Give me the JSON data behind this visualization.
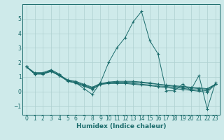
{
  "title": "",
  "xlabel": "Humidex (Indice chaleur)",
  "ylabel": "",
  "background_color": "#ceeaea",
  "grid_color": "#aed0d0",
  "line_color": "#1a6b6b",
  "xlim": [
    -0.5,
    23.5
  ],
  "ylim": [
    -1.6,
    6.0
  ],
  "xticks": [
    0,
    1,
    2,
    3,
    4,
    5,
    6,
    7,
    8,
    9,
    10,
    11,
    12,
    13,
    14,
    15,
    16,
    17,
    18,
    19,
    20,
    21,
    22,
    23
  ],
  "yticks": [
    -1,
    0,
    1,
    2,
    3,
    4,
    5
  ],
  "series": [
    [
      1.7,
      1.3,
      1.3,
      1.5,
      1.2,
      0.7,
      0.6,
      0.2,
      -0.2,
      0.6,
      2.0,
      3.0,
      3.7,
      4.8,
      5.5,
      3.5,
      2.6,
      0.05,
      0.05,
      0.5,
      0.1,
      1.1,
      -1.2,
      0.6
    ],
    [
      1.7,
      1.2,
      1.25,
      1.4,
      1.1,
      0.8,
      0.7,
      0.5,
      0.3,
      0.55,
      0.6,
      0.65,
      0.65,
      0.65,
      0.6,
      0.55,
      0.5,
      0.45,
      0.4,
      0.35,
      0.3,
      0.25,
      0.2,
      0.5
    ],
    [
      1.7,
      1.25,
      1.25,
      1.45,
      1.15,
      0.8,
      0.65,
      0.45,
      0.25,
      0.55,
      0.65,
      0.7,
      0.7,
      0.7,
      0.65,
      0.6,
      0.5,
      0.42,
      0.35,
      0.3,
      0.25,
      0.2,
      0.15,
      0.5
    ],
    [
      1.7,
      1.2,
      1.2,
      1.4,
      1.1,
      0.75,
      0.6,
      0.4,
      0.2,
      0.5,
      0.6,
      0.6,
      0.6,
      0.55,
      0.5,
      0.45,
      0.38,
      0.35,
      0.28,
      0.22,
      0.15,
      0.1,
      0.05,
      0.5
    ],
    [
      1.7,
      1.2,
      1.2,
      1.38,
      1.08,
      0.72,
      0.58,
      0.36,
      0.15,
      0.48,
      0.55,
      0.55,
      0.55,
      0.5,
      0.45,
      0.4,
      0.33,
      0.28,
      0.2,
      0.14,
      0.08,
      0.02,
      -0.05,
      0.5
    ]
  ]
}
